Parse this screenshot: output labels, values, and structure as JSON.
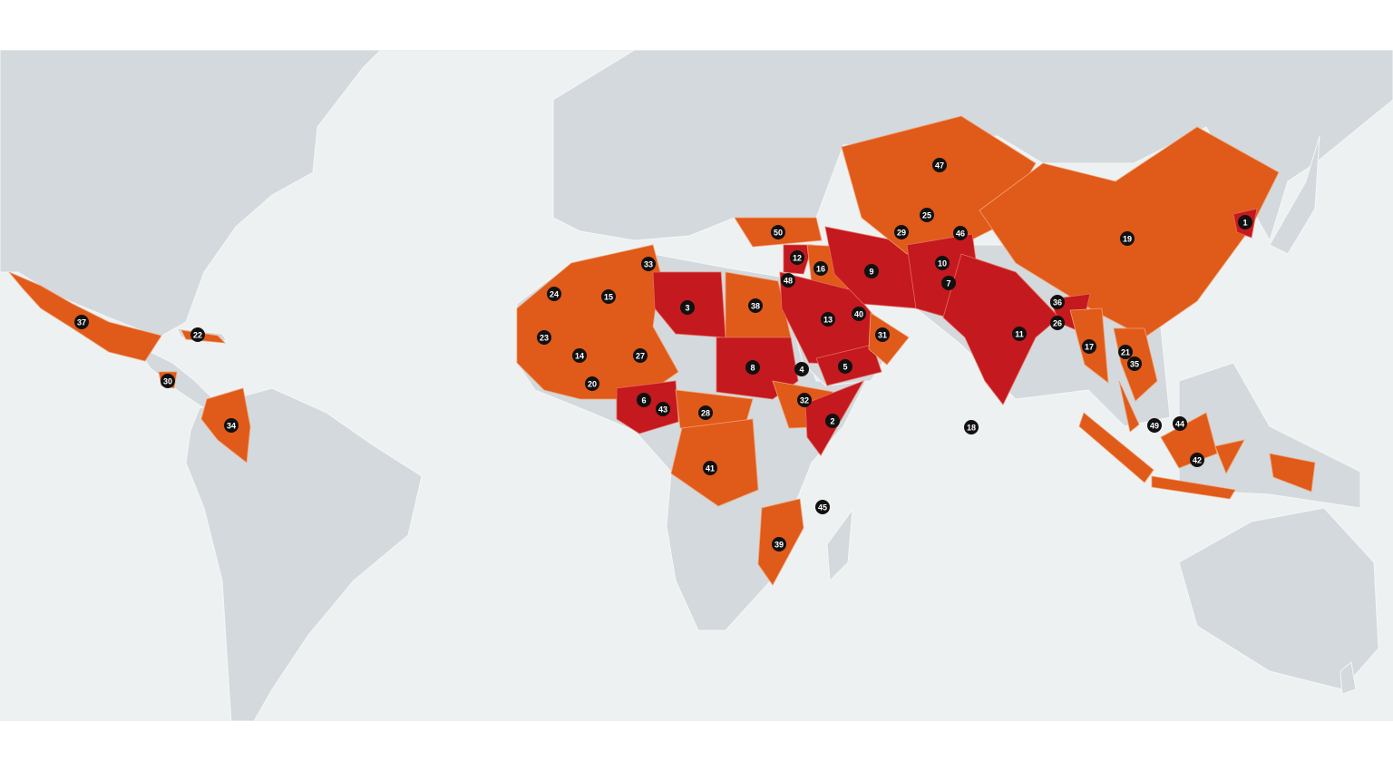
{
  "map": {
    "colors": {
      "ocean": "#eef1f2",
      "land": "#d3d9dc",
      "very_high": "#e05a1a",
      "extreme": "#c4191e",
      "marker": "#111111",
      "marker_text": "#ffffff"
    },
    "markers": [
      {
        "label": "1",
        "level": "extreme"
      },
      {
        "label": "2",
        "level": "extreme"
      },
      {
        "label": "3",
        "level": "extreme"
      },
      {
        "label": "4",
        "level": "extreme"
      },
      {
        "label": "5",
        "level": "extreme"
      },
      {
        "label": "6",
        "level": "extreme"
      },
      {
        "label": "7",
        "level": "extreme"
      },
      {
        "label": "8",
        "level": "extreme"
      },
      {
        "label": "9",
        "level": "extreme"
      },
      {
        "label": "10",
        "level": "extreme"
      },
      {
        "label": "11",
        "level": "extreme"
      },
      {
        "label": "12",
        "level": "extreme"
      },
      {
        "label": "13",
        "level": "extreme"
      },
      {
        "label": "14",
        "level": "very_high"
      },
      {
        "label": "15",
        "level": "very_high"
      },
      {
        "label": "16",
        "level": "very_high"
      },
      {
        "label": "17",
        "level": "very_high"
      },
      {
        "label": "18",
        "level": "very_high"
      },
      {
        "label": "19",
        "level": "very_high"
      },
      {
        "label": "20",
        "level": "very_high"
      },
      {
        "label": "21",
        "level": "very_high"
      },
      {
        "label": "22",
        "level": "very_high"
      },
      {
        "label": "23",
        "level": "very_high"
      },
      {
        "label": "24",
        "level": "very_high"
      },
      {
        "label": "25",
        "level": "very_high"
      },
      {
        "label": "26",
        "level": "very_high"
      },
      {
        "label": "27",
        "level": "very_high"
      },
      {
        "label": "28",
        "level": "very_high"
      },
      {
        "label": "29",
        "level": "very_high"
      },
      {
        "label": "30",
        "level": "very_high"
      },
      {
        "label": "31",
        "level": "very_high"
      },
      {
        "label": "32",
        "level": "very_high"
      },
      {
        "label": "33",
        "level": "very_high"
      },
      {
        "label": "34",
        "level": "very_high"
      },
      {
        "label": "35",
        "level": "very_high"
      },
      {
        "label": "36",
        "level": "very_high"
      },
      {
        "label": "37",
        "level": "very_high"
      },
      {
        "label": "38",
        "level": "very_high"
      },
      {
        "label": "39",
        "level": "very_high"
      },
      {
        "label": "40",
        "level": "very_high"
      },
      {
        "label": "41",
        "level": "very_high"
      },
      {
        "label": "42",
        "level": "very_high"
      },
      {
        "label": "43",
        "level": "very_high"
      },
      {
        "label": "44",
        "level": "very_high"
      },
      {
        "label": "45",
        "level": "very_high"
      },
      {
        "label": "46",
        "level": "very_high"
      },
      {
        "label": "47",
        "level": "very_high"
      },
      {
        "label": "48",
        "level": "very_high"
      },
      {
        "label": "49",
        "level": "very_high"
      },
      {
        "label": "50",
        "level": "very_high"
      }
    ]
  }
}
